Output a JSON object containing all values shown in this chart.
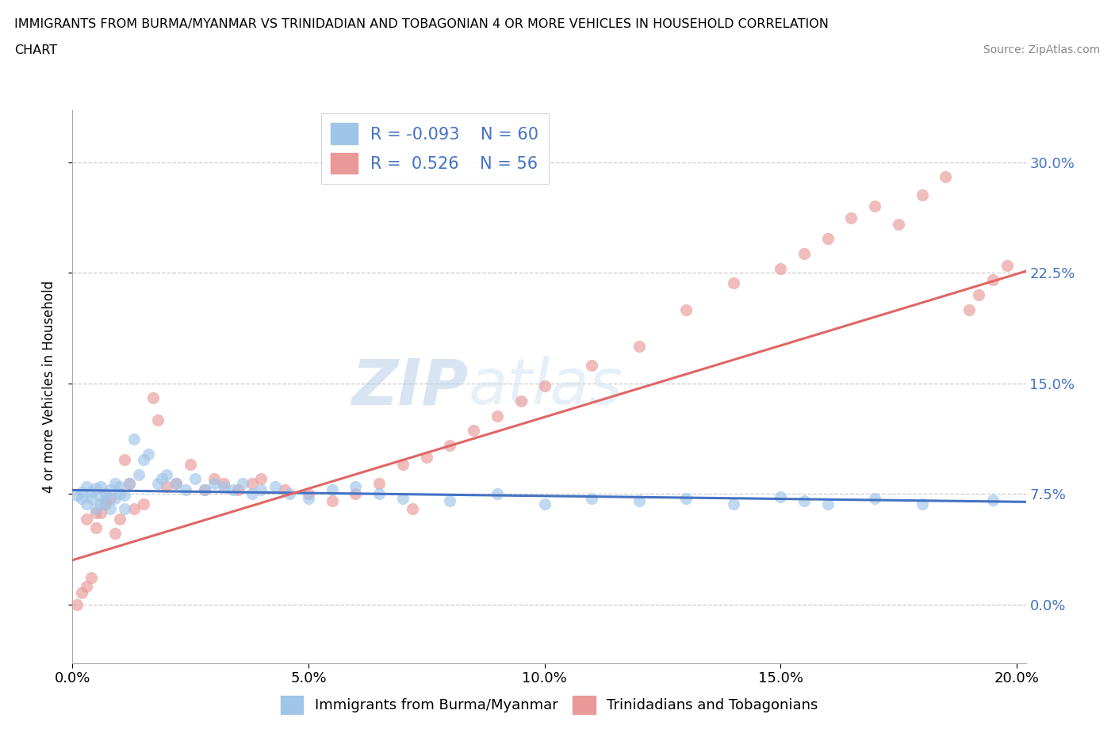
{
  "title_line1": "IMMIGRANTS FROM BURMA/MYANMAR VS TRINIDADIAN AND TOBAGONIAN 4 OR MORE VEHICLES IN HOUSEHOLD CORRELATION",
  "title_line2": "CHART",
  "source": "Source: ZipAtlas.com",
  "ylabel": "4 or more Vehicles in Household",
  "xlim": [
    0.0,
    0.202
  ],
  "ylim": [
    -0.04,
    0.335
  ],
  "yticks": [
    0.0,
    0.075,
    0.15,
    0.225,
    0.3
  ],
  "ytick_labels": [
    "0.0%",
    "7.5%",
    "15.0%",
    "22.5%",
    "30.0%"
  ],
  "xticks": [
    0.0,
    0.05,
    0.1,
    0.15,
    0.2
  ],
  "xtick_labels": [
    "0.0%",
    "5.0%",
    "10.0%",
    "15.0%",
    "20.0%"
  ],
  "legend_r1": "R = -0.093",
  "legend_n1": "N = 60",
  "legend_r2": "R =  0.526",
  "legend_n2": "N = 56",
  "color_blue": "#9fc5e8",
  "color_pink": "#ea9999",
  "line_color_blue": "#4472c4",
  "line_color_pink": "#e06666",
  "scatter_alpha": 0.65,
  "scatter_size": 120,
  "blue_x": [
    0.001,
    0.002,
    0.002,
    0.003,
    0.003,
    0.004,
    0.004,
    0.005,
    0.005,
    0.006,
    0.006,
    0.006,
    0.007,
    0.007,
    0.008,
    0.008,
    0.009,
    0.009,
    0.01,
    0.01,
    0.011,
    0.011,
    0.012,
    0.013,
    0.014,
    0.015,
    0.016,
    0.018,
    0.019,
    0.02,
    0.022,
    0.024,
    0.026,
    0.028,
    0.03,
    0.032,
    0.034,
    0.036,
    0.038,
    0.04,
    0.043,
    0.046,
    0.05,
    0.055,
    0.06,
    0.065,
    0.07,
    0.08,
    0.09,
    0.1,
    0.11,
    0.12,
    0.13,
    0.14,
    0.15,
    0.155,
    0.16,
    0.17,
    0.18,
    0.195
  ],
  "blue_y": [
    0.074,
    0.076,
    0.072,
    0.068,
    0.08,
    0.072,
    0.076,
    0.065,
    0.079,
    0.073,
    0.08,
    0.068,
    0.075,
    0.07,
    0.078,
    0.065,
    0.082,
    0.072,
    0.075,
    0.08,
    0.065,
    0.074,
    0.082,
    0.112,
    0.088,
    0.098,
    0.102,
    0.082,
    0.085,
    0.088,
    0.082,
    0.078,
    0.085,
    0.078,
    0.082,
    0.08,
    0.078,
    0.082,
    0.075,
    0.078,
    0.08,
    0.075,
    0.072,
    0.078,
    0.08,
    0.075,
    0.072,
    0.07,
    0.075,
    0.068,
    0.072,
    0.07,
    0.072,
    0.068,
    0.073,
    0.07,
    0.068,
    0.072,
    0.068,
    0.071
  ],
  "pink_x": [
    0.001,
    0.002,
    0.003,
    0.003,
    0.004,
    0.005,
    0.005,
    0.006,
    0.007,
    0.008,
    0.009,
    0.01,
    0.011,
    0.012,
    0.013,
    0.015,
    0.017,
    0.018,
    0.02,
    0.022,
    0.025,
    0.028,
    0.03,
    0.032,
    0.035,
    0.038,
    0.04,
    0.045,
    0.05,
    0.055,
    0.06,
    0.065,
    0.07,
    0.072,
    0.075,
    0.08,
    0.085,
    0.09,
    0.095,
    0.1,
    0.11,
    0.12,
    0.13,
    0.14,
    0.15,
    0.155,
    0.16,
    0.165,
    0.17,
    0.175,
    0.18,
    0.185,
    0.19,
    0.192,
    0.195,
    0.198
  ],
  "pink_y": [
    0.0,
    0.008,
    0.012,
    0.058,
    0.018,
    0.052,
    0.062,
    0.062,
    0.068,
    0.072,
    0.048,
    0.058,
    0.098,
    0.082,
    0.065,
    0.068,
    0.14,
    0.125,
    0.08,
    0.082,
    0.095,
    0.078,
    0.085,
    0.082,
    0.078,
    0.082,
    0.085,
    0.078,
    0.075,
    0.07,
    0.075,
    0.082,
    0.095,
    0.065,
    0.1,
    0.108,
    0.118,
    0.128,
    0.138,
    0.148,
    0.162,
    0.175,
    0.2,
    0.218,
    0.228,
    0.238,
    0.248,
    0.262,
    0.27,
    0.258,
    0.278,
    0.29,
    0.2,
    0.21,
    0.22,
    0.23
  ],
  "pink_line_x0": 0.0,
  "pink_line_y0": 0.03,
  "pink_line_x1": 0.202,
  "pink_line_y1": 0.226,
  "blue_line_x0": 0.0,
  "blue_line_y0": 0.0775,
  "blue_line_x1": 0.202,
  "blue_line_y1": 0.0695
}
